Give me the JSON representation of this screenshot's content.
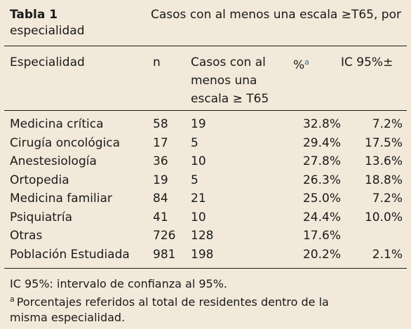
{
  "caption": {
    "label": "Tabla 1",
    "text_line1": "Casos con al menos una escala ≥T65, por",
    "text_line2": "especialidad"
  },
  "table": {
    "headers": {
      "specialty": "Especialidad",
      "n": "n",
      "cases_line1": "Casos con al",
      "cases_line2": "menos una",
      "cases_line3": "escala ≥ T65",
      "percent": "%",
      "percent_sup": "a",
      "ci": "IC 95%±"
    },
    "rows": [
      {
        "specialty": "Medicina crítica",
        "n": "58",
        "cases": "19",
        "percent": "32.8%",
        "ci": "7.2%"
      },
      {
        "specialty": "Cirugía oncológica",
        "n": "17",
        "cases": "5",
        "percent": "29.4%",
        "ci": "17.5%"
      },
      {
        "specialty": "Anestesiología",
        "n": "36",
        "cases": "10",
        "percent": "27.8%",
        "ci": "13.6%"
      },
      {
        "specialty": "Ortopedia",
        "n": "19",
        "cases": "5",
        "percent": "26.3%",
        "ci": "18.8%"
      },
      {
        "specialty": "Medicina familiar",
        "n": "84",
        "cases": "21",
        "percent": "25.0%",
        "ci": "7.2%"
      },
      {
        "specialty": "Psiquiatría",
        "n": "41",
        "cases": "10",
        "percent": "24.4%",
        "ci": "10.0%"
      },
      {
        "specialty": "Otras",
        "n": "726",
        "cases": "128",
        "percent": "17.6%",
        "ci": ""
      },
      {
        "specialty": "Población Estudiada",
        "n": "981",
        "cases": "198",
        "percent": "20.2%",
        "ci": "2.1%"
      }
    ]
  },
  "footnotes": {
    "ic": "IC 95%: intervalo de confianza al 95%.",
    "a_marker": "a",
    "a_text_line1": "Porcentajes referidos al total de residentes dentro de la",
    "a_text_line2": "misma especialidad."
  }
}
